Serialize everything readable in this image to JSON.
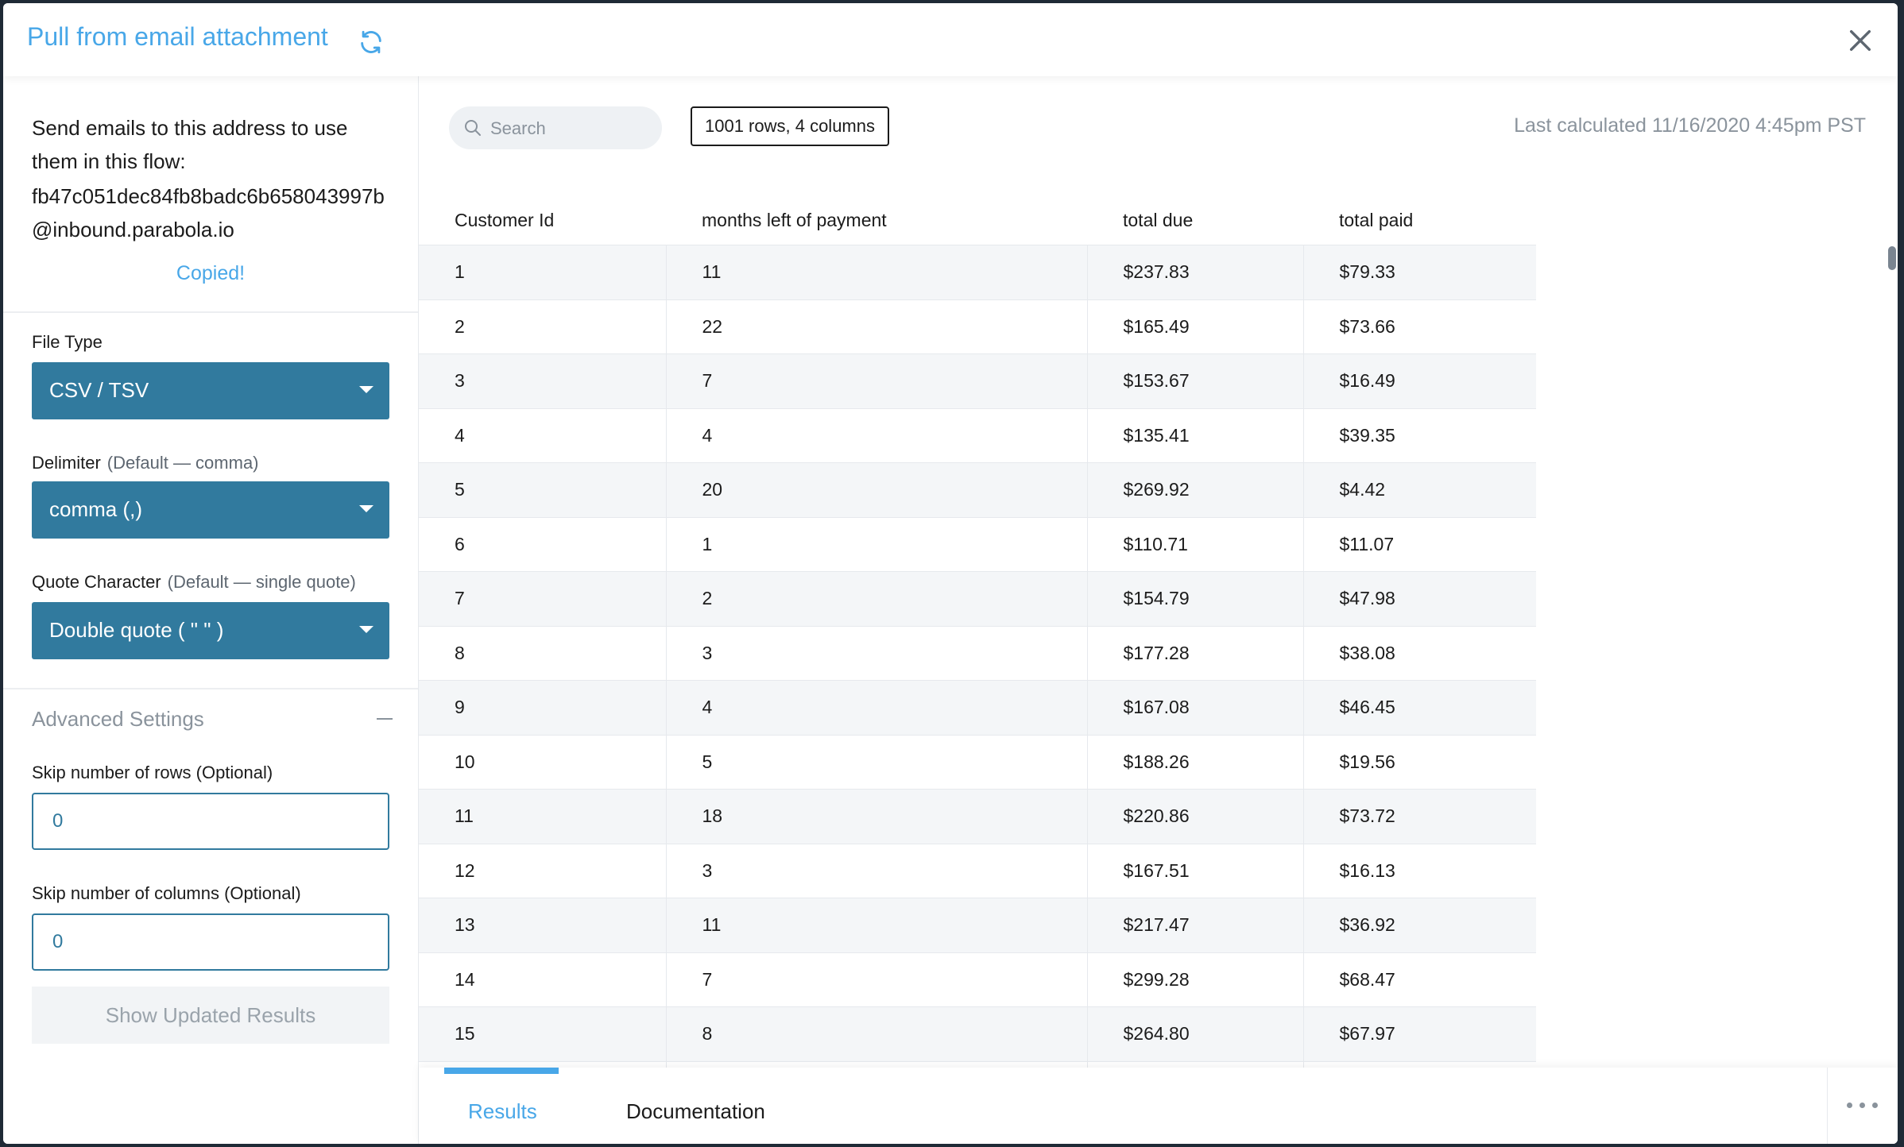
{
  "header": {
    "title": "Pull from email attachment"
  },
  "sidebar": {
    "email_intro": "Send emails to this address to use them in this flow:",
    "email_address": "fb47c051dec84fb8badc6b658043997b@inbound.parabola.io",
    "copied_label": "Copied!",
    "file_type": {
      "label": "File Type",
      "value": "CSV / TSV"
    },
    "delimiter": {
      "label": "Delimiter",
      "hint": "(Default — comma)",
      "value": "comma (,)"
    },
    "quote_character": {
      "label": "Quote Character",
      "hint": "(Default — single quote)",
      "value": "Double quote ( \" \" )"
    },
    "advanced_settings_label": "Advanced Settings",
    "skip_rows": {
      "label": "Skip number of rows (Optional)",
      "value": "0"
    },
    "skip_columns": {
      "label": "Skip number of columns (Optional)",
      "value": "0"
    },
    "update_button": "Show Updated Results"
  },
  "main": {
    "search_placeholder": "Search",
    "rows_badge": "1001 rows, 4 columns",
    "last_calculated": "Last calculated 11/16/2020 4:45pm PST",
    "table": {
      "columns": [
        "Customer Id",
        "months left of payment",
        "total due",
        "total paid"
      ],
      "rows": [
        [
          "1",
          "11",
          "$237.83",
          "$79.33"
        ],
        [
          "2",
          "22",
          "$165.49",
          "$73.66"
        ],
        [
          "3",
          "7",
          "$153.67",
          "$16.49"
        ],
        [
          "4",
          "4",
          "$135.41",
          "$39.35"
        ],
        [
          "5",
          "20",
          "$269.92",
          "$4.42"
        ],
        [
          "6",
          "1",
          "$110.71",
          "$11.07"
        ],
        [
          "7",
          "2",
          "$154.79",
          "$47.98"
        ],
        [
          "8",
          "3",
          "$177.28",
          "$38.08"
        ],
        [
          "9",
          "4",
          "$167.08",
          "$46.45"
        ],
        [
          "10",
          "5",
          "$188.26",
          "$19.56"
        ],
        [
          "11",
          "18",
          "$220.86",
          "$73.72"
        ],
        [
          "12",
          "3",
          "$167.51",
          "$16.13"
        ],
        [
          "13",
          "11",
          "$217.47",
          "$36.92"
        ],
        [
          "14",
          "7",
          "$299.28",
          "$68.47"
        ],
        [
          "15",
          "8",
          "$264.80",
          "$67.97"
        ],
        [
          "",
          "",
          "",
          ""
        ]
      ]
    }
  },
  "tabs": {
    "results": "Results",
    "documentation": "Documentation"
  },
  "colors": {
    "accent": "#48a7e8",
    "select_bg": "#317a9e",
    "stripe": "#f4f6f8"
  },
  "icons": {
    "refresh": "refresh-icon",
    "close": "close-icon",
    "search": "search-icon",
    "caret": "caret-down-icon",
    "collapse": "minus-icon",
    "more": "more-horizontal-icon"
  }
}
